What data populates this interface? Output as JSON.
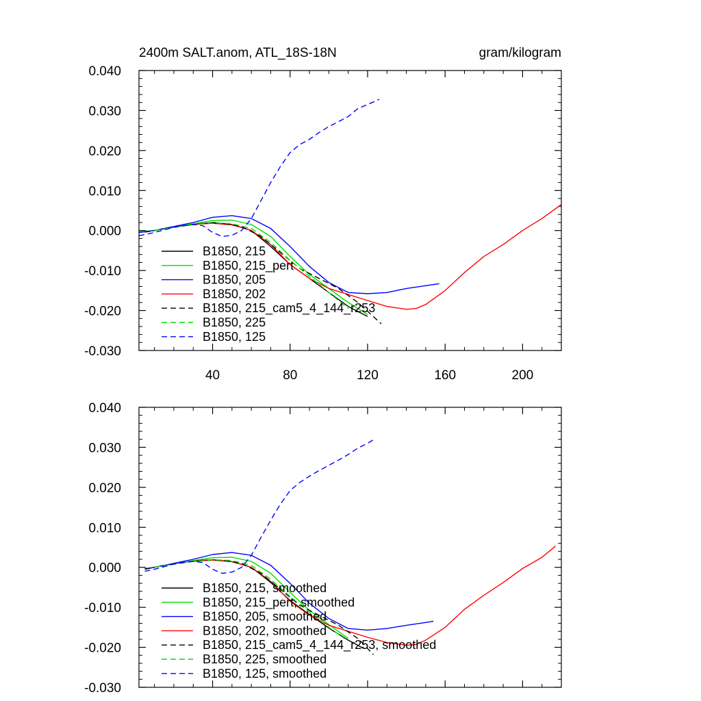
{
  "chart_data": [
    {
      "type": "line",
      "title": "2400m SALT.anom, ATL_18S-18N",
      "units": "gram/kilogram",
      "xlim": [
        2,
        220
      ],
      "ylim": [
        -0.03,
        0.04
      ],
      "x_ticks": [
        40,
        80,
        120,
        160,
        200
      ],
      "y_ticks": [
        -0.03,
        -0.02,
        -0.01,
        0.0,
        0.01,
        0.02,
        0.03,
        0.04
      ],
      "x_tick_labels": [
        "40",
        "80",
        "120",
        "160",
        "200"
      ],
      "y_tick_labels": [
        "-0.030",
        "-0.020",
        "-0.010",
        "0.000",
        "0.010",
        "0.020",
        "0.030",
        "0.040"
      ],
      "legend_position": "lower-left",
      "series": [
        {
          "name": "B1850, 215",
          "color": "#000000",
          "dash": "solid",
          "x": [
            2,
            10,
            20,
            30,
            40,
            50,
            60,
            70,
            80,
            90,
            100,
            110,
            120
          ],
          "y": [
            -0.0005,
            0.0,
            0.001,
            0.0015,
            0.002,
            0.0015,
            0.0,
            -0.004,
            -0.0085,
            -0.012,
            -0.0155,
            -0.019,
            -0.0215
          ]
        },
        {
          "name": "B1850, 215_pert",
          "color": "#00dd00",
          "dash": "solid",
          "x": [
            2,
            10,
            20,
            30,
            40,
            50,
            60,
            70,
            80,
            90,
            100,
            110,
            120
          ],
          "y": [
            -0.0003,
            0.0,
            0.0008,
            0.0017,
            0.0025,
            0.0026,
            0.0015,
            -0.0015,
            -0.0065,
            -0.011,
            -0.0145,
            -0.018,
            -0.021
          ]
        },
        {
          "name": "B1850, 205",
          "color": "#0000ff",
          "dash": "solid",
          "x": [
            2,
            10,
            20,
            30,
            40,
            50,
            60,
            70,
            80,
            90,
            100,
            110,
            120,
            130,
            140,
            150,
            157
          ],
          "y": [
            -0.0005,
            0.0,
            0.001,
            0.002,
            0.0033,
            0.0037,
            0.003,
            0.0005,
            -0.004,
            -0.009,
            -0.013,
            -0.0155,
            -0.0158,
            -0.0155,
            -0.0145,
            -0.0138,
            -0.0133
          ]
        },
        {
          "name": "B1850, 202",
          "color": "#ff0000",
          "dash": "solid",
          "x": [
            30,
            40,
            50,
            60,
            70,
            80,
            90,
            100,
            110,
            120,
            130,
            140,
            145,
            150,
            160,
            170,
            180,
            190,
            200,
            210,
            220
          ],
          "y": [
            0.0015,
            0.0018,
            0.0014,
            0.0,
            -0.0035,
            -0.0085,
            -0.012,
            -0.0145,
            -0.016,
            -0.0175,
            -0.019,
            -0.0197,
            -0.0195,
            -0.0185,
            -0.015,
            -0.0105,
            -0.0065,
            -0.0035,
            0.0,
            0.003,
            0.0065
          ]
        },
        {
          "name": "B1850, 215_cam5_4_144_r253",
          "color": "#000000",
          "dash": "dashed",
          "x": [
            5,
            15,
            25,
            35,
            45,
            55,
            65,
            75,
            85,
            95,
            105,
            115,
            127
          ],
          "y": [
            -0.0004,
            0.0004,
            0.0012,
            0.0018,
            0.0018,
            0.001,
            -0.0015,
            -0.0055,
            -0.0095,
            -0.012,
            -0.0145,
            -0.018,
            -0.0233
          ]
        },
        {
          "name": "B1850, 225",
          "color": "#00dd00",
          "dash": "dashed",
          "x": [
            10,
            20,
            30,
            40,
            50,
            60,
            70,
            80,
            90,
            100,
            110
          ],
          "y": [
            0.0,
            0.0008,
            0.0015,
            0.0019,
            0.0017,
            0.0005,
            -0.003,
            -0.0075,
            -0.0115,
            -0.0155,
            -0.0195
          ]
        },
        {
          "name": "B1850, 125",
          "color": "#0000ff",
          "dash": "dashed",
          "x": [
            2,
            10,
            20,
            30,
            35,
            40,
            45,
            50,
            55,
            60,
            65,
            70,
            75,
            80,
            85,
            90,
            95,
            100,
            105,
            110,
            115,
            120,
            126
          ],
          "y": [
            -0.0013,
            -0.0005,
            0.0008,
            0.0015,
            0.0012,
            -0.0005,
            -0.0015,
            -0.0012,
            0.0,
            0.003,
            0.0075,
            0.012,
            0.016,
            0.0195,
            0.0215,
            0.0228,
            0.0245,
            0.026,
            0.0272,
            0.0285,
            0.0305,
            0.0315,
            0.0328
          ]
        }
      ]
    },
    {
      "type": "line",
      "xlim": [
        2,
        220
      ],
      "ylim": [
        -0.03,
        0.04
      ],
      "x_ticks": [
        40,
        80,
        120,
        160,
        200
      ],
      "y_ticks": [
        -0.03,
        -0.02,
        -0.01,
        0.0,
        0.01,
        0.02,
        0.03,
        0.04
      ],
      "y_tick_labels": [
        "-0.030",
        "-0.020",
        "-0.010",
        "0.000",
        "0.010",
        "0.020",
        "0.030",
        "0.040"
      ],
      "legend_position": "lower-left",
      "series": [
        {
          "name": "B1850, 215, smoothed",
          "color": "#000000",
          "dash": "solid",
          "x": [
            5,
            10,
            20,
            30,
            40,
            50,
            60,
            70,
            80,
            90,
            100,
            110,
            118
          ],
          "y": [
            -0.0005,
            0.0,
            0.0009,
            0.0016,
            0.0019,
            0.0014,
            0.0,
            -0.0038,
            -0.0083,
            -0.0118,
            -0.0152,
            -0.0182,
            -0.0203
          ]
        },
        {
          "name": "B1850, 215_pert, smoothed",
          "color": "#00dd00",
          "dash": "solid",
          "x": [
            5,
            10,
            20,
            30,
            40,
            50,
            60,
            70,
            80,
            90,
            100,
            110
          ],
          "y": [
            -0.0003,
            0.0,
            0.0008,
            0.0017,
            0.0024,
            0.0025,
            0.0015,
            -0.0015,
            -0.0063,
            -0.0108,
            -0.0143,
            -0.0178
          ]
        },
        {
          "name": "B1850, 205, smoothed",
          "color": "#0000ff",
          "dash": "solid",
          "x": [
            5,
            10,
            20,
            30,
            40,
            50,
            60,
            70,
            80,
            90,
            100,
            110,
            120,
            130,
            140,
            150,
            154
          ],
          "y": [
            -0.0005,
            0.0,
            0.001,
            0.002,
            0.0032,
            0.0037,
            0.003,
            0.0005,
            -0.004,
            -0.009,
            -0.0128,
            -0.0153,
            -0.0157,
            -0.0153,
            -0.0145,
            -0.0138,
            -0.0135
          ]
        },
        {
          "name": "B1850, 202, smoothed",
          "color": "#ff0000",
          "dash": "solid",
          "x": [
            30,
            40,
            50,
            60,
            70,
            80,
            90,
            100,
            110,
            120,
            130,
            140,
            145,
            150,
            160,
            170,
            180,
            190,
            200,
            210,
            217
          ],
          "y": [
            0.0015,
            0.0018,
            0.0014,
            0.0,
            -0.0035,
            -0.0085,
            -0.012,
            -0.0145,
            -0.016,
            -0.0175,
            -0.0188,
            -0.0195,
            -0.0193,
            -0.0182,
            -0.015,
            -0.0105,
            -0.007,
            -0.0038,
            -0.0003,
            0.0025,
            0.0053
          ]
        },
        {
          "name": "B1850, 215_cam5_4_144_r253, smoothed",
          "color": "#000000",
          "dash": "dashed",
          "x": [
            5,
            15,
            25,
            35,
            45,
            55,
            65,
            75,
            85,
            95,
            105,
            115,
            123
          ],
          "y": [
            -0.0004,
            0.0004,
            0.0012,
            0.0018,
            0.0018,
            0.001,
            -0.0015,
            -0.0055,
            -0.0095,
            -0.012,
            -0.0145,
            -0.0178,
            -0.0218
          ]
        },
        {
          "name": "B1850, 225, smoothed",
          "color": "#00dd00",
          "dash": "dashed",
          "x": [
            10,
            20,
            30,
            40,
            50,
            60,
            70,
            80,
            90,
            100,
            108
          ],
          "y": [
            0.0,
            0.0008,
            0.0015,
            0.0019,
            0.0017,
            0.0005,
            -0.003,
            -0.0073,
            -0.0112,
            -0.015,
            -0.0178
          ]
        },
        {
          "name": "B1850, 125, smoothed",
          "color": "#0000ff",
          "dash": "dashed",
          "x": [
            5,
            10,
            20,
            30,
            35,
            40,
            45,
            50,
            55,
            60,
            65,
            70,
            75,
            80,
            85,
            90,
            95,
            100,
            105,
            110,
            115,
            120,
            124
          ],
          "y": [
            -0.001,
            -0.0005,
            0.0008,
            0.0015,
            0.0012,
            -0.0005,
            -0.0015,
            -0.0012,
            0.0,
            0.003,
            0.0075,
            0.0118,
            0.0158,
            0.0192,
            0.0212,
            0.0228,
            0.0242,
            0.0255,
            0.0268,
            0.0282,
            0.0298,
            0.031,
            0.0322
          ]
        }
      ]
    }
  ]
}
